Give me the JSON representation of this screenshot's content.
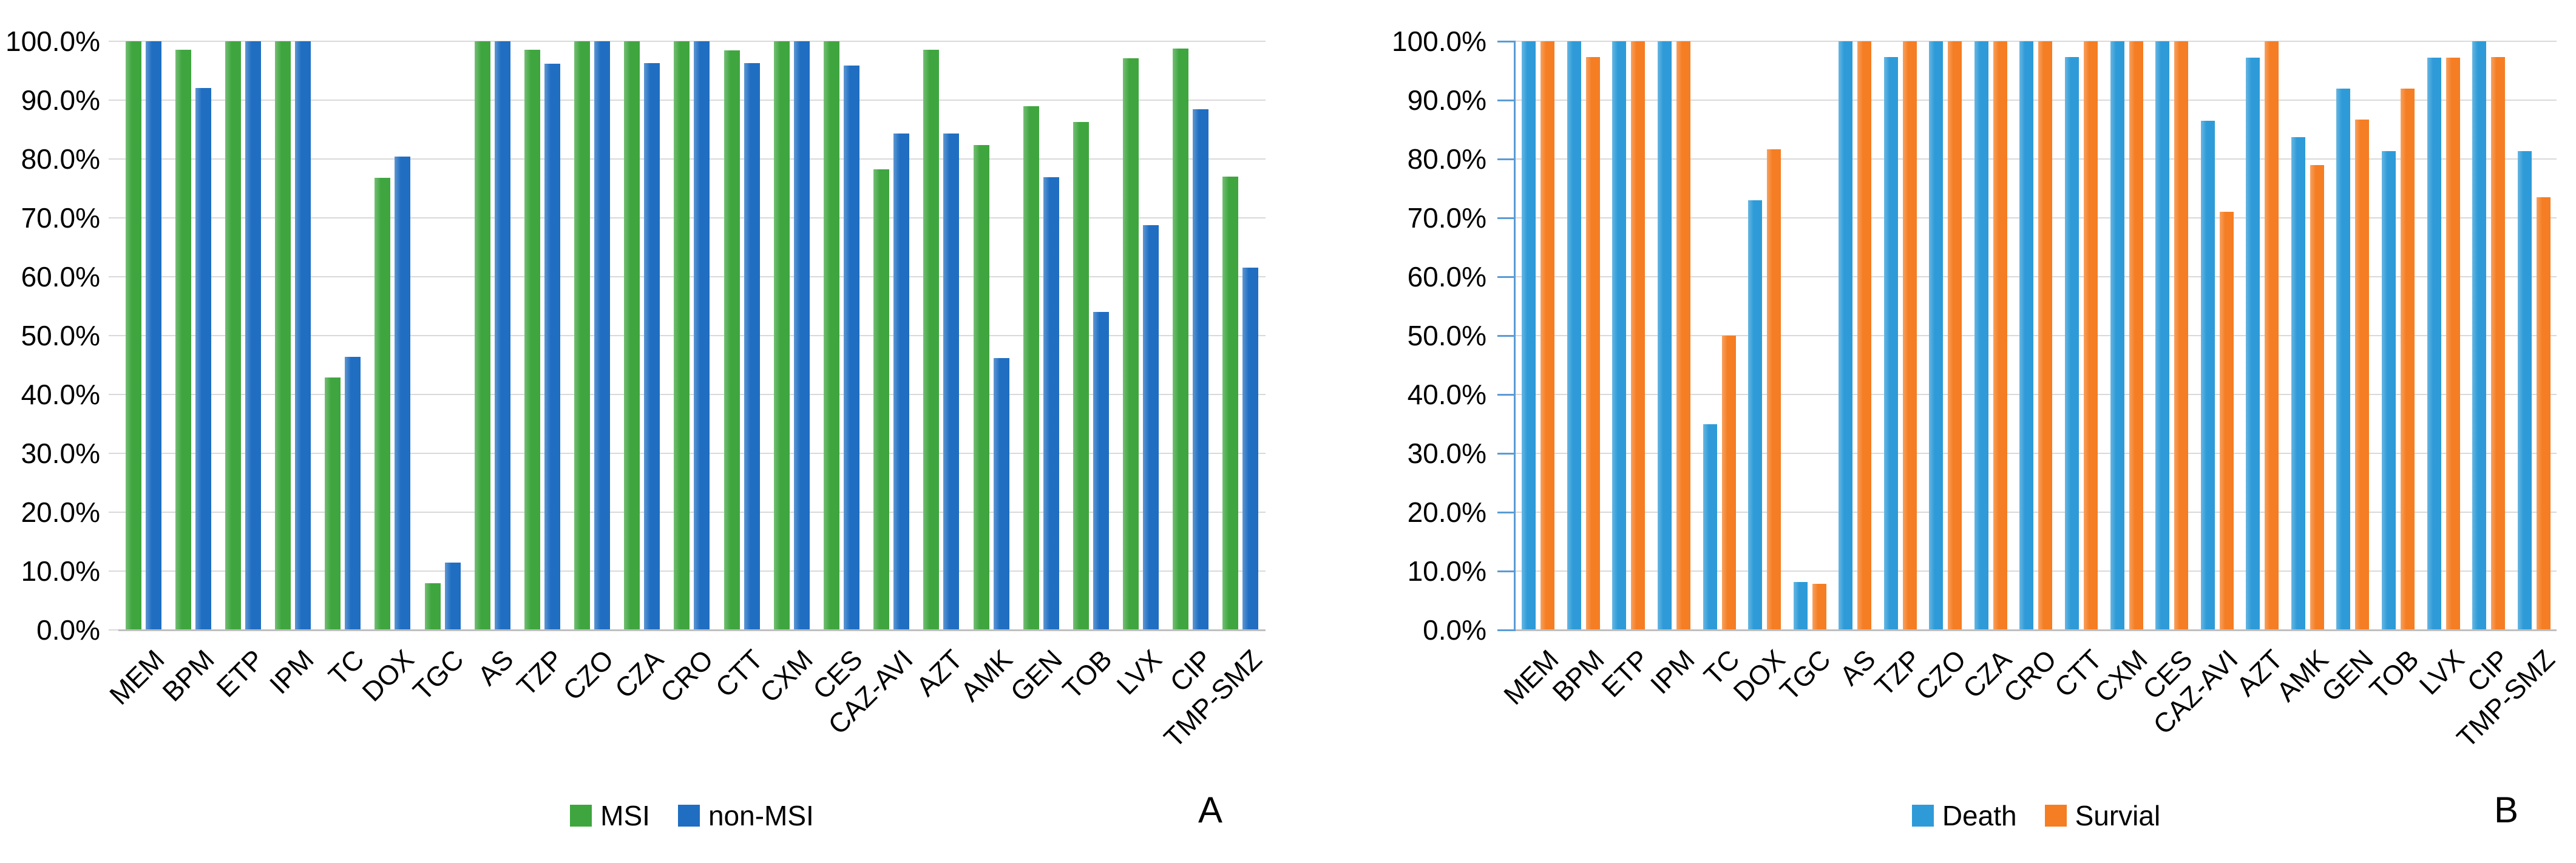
{
  "figure": {
    "background": "#ffffff",
    "grid_color": "#d9d9d9",
    "axis_color": "#bfbfbf",
    "right_axis_color": "#5b9bd5"
  },
  "chart_data": [
    {
      "type": "bar",
      "panel_label": "A",
      "title": "",
      "xlabel": "",
      "ylabel": "",
      "ylim": [
        0,
        100
      ],
      "grid": true,
      "legend_position": "bottom",
      "yticks": [
        "100.0%",
        "90.0%",
        "80.0%",
        "70.0%",
        "60.0%",
        "50.0%",
        "40.0%",
        "30.0%",
        "20.0%",
        "10.0%",
        "0.0%"
      ],
      "categories": [
        "MEM",
        "BPM",
        "ETP",
        "IPM",
        "TC",
        "DOX",
        "TGC",
        "AS",
        "TZP",
        "CZO",
        "CZA",
        "CRO",
        "CTT",
        "CXM",
        "CES",
        "CAZ-AVI",
        "AZT",
        "AMK",
        "GEN",
        "TOB",
        "LVX",
        "CIP",
        "TMP-SMZ"
      ],
      "series": [
        {
          "name": "MSI",
          "color": "#3fa63f",
          "values": [
            100,
            98.6,
            100,
            100,
            42.9,
            76.8,
            7.9,
            100,
            98.6,
            100,
            100,
            100,
            98.5,
            100,
            100,
            78.3,
            98.6,
            82.4,
            89.0,
            86.3,
            97.1,
            98.8,
            77.0
          ]
        },
        {
          "name": "non-MSI",
          "color": "#1f6ec2",
          "values": [
            100,
            92.1,
            100,
            100,
            46.4,
            80.4,
            11.4,
            100,
            96.2,
            100,
            96.3,
            100,
            96.3,
            100,
            95.9,
            84.3,
            84.3,
            46.2,
            76.9,
            54.0,
            68.8,
            88.5,
            61.5
          ]
        }
      ]
    },
    {
      "type": "bar",
      "panel_label": "B",
      "title": "",
      "xlabel": "",
      "ylabel": "",
      "ylim": [
        0,
        100
      ],
      "grid": true,
      "legend_position": "bottom",
      "yticks": [
        "100.0%",
        "90.0%",
        "80.0%",
        "70.0%",
        "60.0%",
        "50.0%",
        "40.0%",
        "30.0%",
        "20.0%",
        "10.0%",
        "0.0%"
      ],
      "categories": [
        "MEM",
        "BPM",
        "ETP",
        "IPM",
        "TC",
        "DOX",
        "TGC",
        "AS",
        "TZP",
        "CZO",
        "CZA",
        "CRO",
        "CTT",
        "CXM",
        "CES",
        "CAZ-AVI",
        "AZT",
        "AMK",
        "GEN",
        "TOB",
        "LVX",
        "CIP",
        "TMP-SMZ"
      ],
      "series": [
        {
          "name": "Death",
          "color": "#2e9bd8",
          "values": [
            100,
            100,
            100,
            100,
            35.0,
            73.0,
            8.1,
            100,
            97.3,
            100,
            100,
            100,
            97.3,
            100,
            100,
            86.5,
            97.2,
            83.7,
            92.0,
            81.3,
            97.2,
            100,
            81.3
          ]
        },
        {
          "name": "Survial",
          "color": "#f57d23",
          "values": [
            100,
            97.3,
            100,
            100,
            50.0,
            81.7,
            7.8,
            100,
            100,
            100,
            100,
            100,
            100,
            100,
            100,
            71.0,
            100,
            79.0,
            86.7,
            92.0,
            97.2,
            97.3,
            73.5
          ]
        }
      ]
    }
  ]
}
